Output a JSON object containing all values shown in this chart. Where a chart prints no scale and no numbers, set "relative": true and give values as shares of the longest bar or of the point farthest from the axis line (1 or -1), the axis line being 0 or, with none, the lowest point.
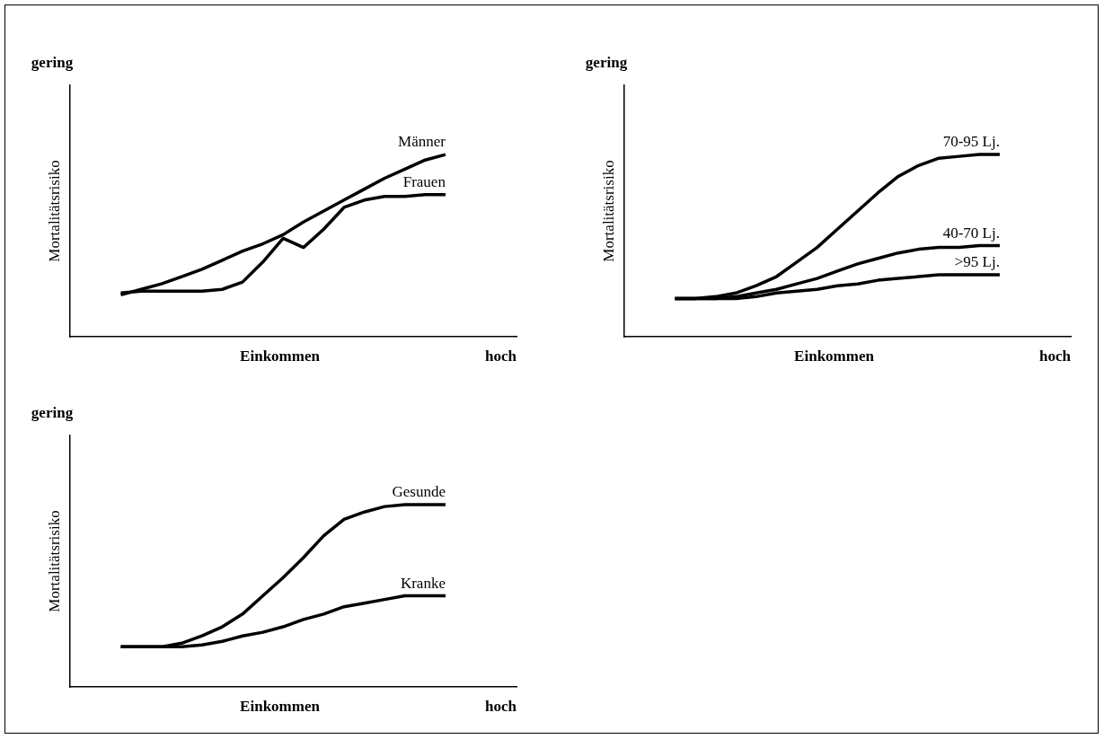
{
  "chart_data": [
    {
      "type": "line",
      "relative": true,
      "xlabel": "Einkommen",
      "ylabel": "Mortalitätsrisiko",
      "annotations": [
        "gering",
        "hoch"
      ],
      "categories": [
        null,
        null,
        null,
        null,
        null,
        null,
        null,
        null,
        null,
        null,
        null,
        null,
        null,
        null,
        null,
        null,
        null,
        null,
        null,
        null,
        null,
        null
      ],
      "series": [
        {
          "name": "Männer",
          "color": "#000000",
          "values": [
            null,
            null,
            0.23,
            0.26,
            0.29,
            0.33,
            0.37,
            0.42,
            0.47,
            0.51,
            0.56,
            0.63,
            0.69,
            0.75,
            0.81,
            0.87,
            0.92,
            0.97,
            1,
            null,
            null,
            null
          ]
        },
        {
          "name": "Frauen",
          "color": "#000000",
          "values": [
            null,
            null,
            0.24,
            0.25,
            0.25,
            0.25,
            0.25,
            0.26,
            0.3,
            0.41,
            0.54,
            0.49,
            0.59,
            0.71,
            0.75,
            0.77,
            0.77,
            0.78,
            0.78,
            null,
            null,
            null
          ]
        }
      ]
    },
    {
      "type": "line",
      "relative": true,
      "xlabel": "Einkommen",
      "ylabel": "Mortalitätsrisiko",
      "annotations": [
        "gering",
        "hoch"
      ],
      "categories": [
        null,
        null,
        null,
        null,
        null,
        null,
        null,
        null,
        null,
        null,
        null,
        null,
        null,
        null,
        null,
        null,
        null,
        null,
        null,
        null,
        null,
        null
      ],
      "series": [
        {
          "name": "70-95 Lj.",
          "color": "#000000",
          "values": [
            null,
            null,
            0.21,
            0.21,
            0.22,
            0.24,
            0.28,
            0.33,
            0.41,
            0.49,
            0.59,
            0.69,
            0.79,
            0.88,
            0.94,
            0.98,
            0.99,
            1,
            1,
            null,
            null,
            null
          ]
        },
        {
          "name": "40-70 Lj.",
          "color": "#000000",
          "values": [
            null,
            null,
            0.21,
            0.21,
            0.21,
            0.22,
            0.24,
            0.26,
            0.29,
            0.32,
            0.36,
            0.4,
            0.43,
            0.46,
            0.48,
            0.49,
            0.49,
            0.5,
            0.5,
            null,
            null,
            null
          ]
        },
        {
          "name": ">95 Lj.",
          "color": "#000000",
          "values": [
            null,
            null,
            0.21,
            0.21,
            0.21,
            0.21,
            0.22,
            0.24,
            0.25,
            0.26,
            0.28,
            0.29,
            0.31,
            0.32,
            0.33,
            0.34,
            0.34,
            0.34,
            0.34,
            null,
            null,
            null
          ]
        }
      ]
    },
    {
      "type": "line",
      "relative": true,
      "xlabel": "Einkommen",
      "ylabel": "Mortalitätsrisiko",
      "annotations": [
        "gering",
        "hoch"
      ],
      "categories": [
        null,
        null,
        null,
        null,
        null,
        null,
        null,
        null,
        null,
        null,
        null,
        null,
        null,
        null,
        null,
        null,
        null,
        null,
        null,
        null,
        null,
        null
      ],
      "series": [
        {
          "name": "Gesunde",
          "color": "#000000",
          "values": [
            null,
            null,
            0.22,
            0.22,
            0.22,
            0.24,
            0.28,
            0.33,
            0.4,
            0.5,
            0.6,
            0.71,
            0.83,
            0.92,
            0.96,
            0.99,
            1,
            1,
            1,
            null,
            null,
            null
          ]
        },
        {
          "name": "Kranke",
          "color": "#000000",
          "values": [
            null,
            null,
            0.22,
            0.22,
            0.22,
            0.22,
            0.23,
            0.25,
            0.28,
            0.3,
            0.33,
            0.37,
            0.4,
            0.44,
            0.46,
            0.48,
            0.5,
            0.5,
            0.5,
            null,
            null,
            null
          ]
        }
      ]
    }
  ]
}
